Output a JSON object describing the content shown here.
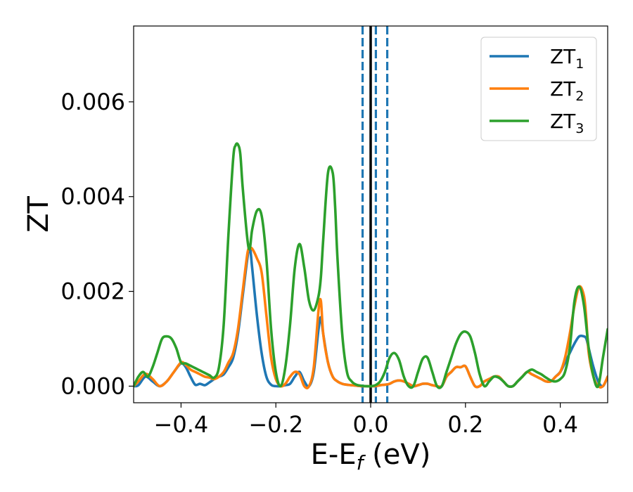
{
  "chart_data": {
    "type": "line",
    "title": "",
    "xlabel": {
      "main": "E-E",
      "sub": "f",
      "unit": " (eV)"
    },
    "ylabel": "ZT",
    "xlim": [
      -0.5,
      0.5
    ],
    "ylim": [
      -0.00035,
      0.0076
    ],
    "xticks": [
      -0.4,
      -0.2,
      0.0,
      0.2,
      0.4
    ],
    "xtick_labels": [
      "−0.4",
      "−0.2",
      "0.0",
      "0.2",
      "0.4"
    ],
    "yticks": [
      0.0,
      0.002,
      0.004,
      0.006
    ],
    "ytick_labels": [
      "0.000",
      "0.002",
      "0.004",
      "0.006"
    ],
    "grid": false,
    "legend_position": "top-right",
    "vlines": [
      {
        "x": 0.0,
        "style": "solid",
        "color": "#000000"
      },
      {
        "x": -0.017,
        "style": "dashed",
        "color": "#1f77b4"
      },
      {
        "x": 0.011,
        "style": "dashed",
        "color": "#1f77b4"
      },
      {
        "x": 0.035,
        "style": "dashed",
        "color": "#1f77b4"
      }
    ],
    "series": [
      {
        "name": "ZT",
        "sub": "1",
        "color": "#1f77b4",
        "x": [
          -0.5,
          -0.49,
          -0.475,
          -0.46,
          -0.445,
          -0.43,
          -0.415,
          -0.4,
          -0.39,
          -0.38,
          -0.37,
          -0.36,
          -0.35,
          -0.34,
          -0.33,
          -0.32,
          -0.31,
          -0.3,
          -0.29,
          -0.28,
          -0.27,
          -0.26,
          -0.255,
          -0.25,
          -0.24,
          -0.23,
          -0.22,
          -0.21,
          -0.2,
          -0.19,
          -0.18,
          -0.17,
          -0.16,
          -0.15,
          -0.14,
          -0.13,
          -0.12,
          -0.11,
          -0.105,
          -0.1,
          -0.09,
          -0.08,
          -0.07,
          -0.06,
          -0.05,
          -0.04,
          -0.03,
          -0.02,
          -0.01,
          0.0,
          0.01,
          0.02,
          0.03,
          0.04,
          0.05,
          0.06,
          0.07,
          0.08,
          0.09,
          0.1,
          0.11,
          0.12,
          0.13,
          0.14,
          0.15,
          0.16,
          0.17,
          0.18,
          0.19,
          0.2,
          0.21,
          0.22,
          0.23,
          0.24,
          0.25,
          0.26,
          0.27,
          0.28,
          0.29,
          0.3,
          0.31,
          0.32,
          0.33,
          0.34,
          0.35,
          0.36,
          0.37,
          0.38,
          0.39,
          0.4,
          0.41,
          0.42,
          0.43,
          0.44,
          0.45,
          0.455,
          0.46,
          0.47,
          0.48,
          0.49,
          0.5
        ],
        "y": [
          0.0,
          2e-05,
          0.0002,
          0.0001,
          0.0,
          0.0001,
          0.0003,
          0.00048,
          0.0004,
          0.0002,
          3e-05,
          5e-05,
          2e-05,
          8e-05,
          0.00015,
          0.0002,
          0.00025,
          0.0004,
          0.0006,
          0.0011,
          0.0019,
          0.0027,
          0.00295,
          0.0025,
          0.0015,
          0.0007,
          0.0002,
          3e-05,
          0.0,
          0.0,
          2e-05,
          5e-05,
          0.0002,
          0.0003,
          0.0001,
          0.0,
          0.0003,
          0.0012,
          0.00145,
          0.0011,
          0.0005,
          0.0002,
          0.0001,
          5e-05,
          3e-05,
          2e-05,
          1e-05,
          0.0,
          0.0,
          0.0,
          0.0,
          2e-05,
          3e-05,
          5e-05,
          0.0001,
          0.00012,
          0.0001,
          5e-05,
          0.0,
          2e-05,
          5e-05,
          5e-05,
          2e-05,
          0.0,
          0.0,
          0.0002,
          0.0003,
          0.0004,
          0.0004,
          0.00042,
          0.0002,
          0.0,
          0.0,
          0.0001,
          0.00015,
          0.0002,
          0.0002,
          0.0001,
          0.0,
          0.0,
          0.0001,
          0.0002,
          0.0003,
          0.00025,
          0.0002,
          0.00015,
          0.0001,
          0.0001,
          0.0002,
          0.0003,
          0.0005,
          0.0007,
          0.0009,
          0.00105,
          0.00105,
          0.001,
          0.0008,
          0.0004,
          0.0001,
          0.0,
          0.0002
        ]
      },
      {
        "name": "ZT",
        "sub": "2",
        "color": "#ff7f0e",
        "x": [
          -0.5,
          -0.49,
          -0.475,
          -0.46,
          -0.445,
          -0.43,
          -0.415,
          -0.4,
          -0.39,
          -0.38,
          -0.37,
          -0.36,
          -0.35,
          -0.34,
          -0.33,
          -0.32,
          -0.31,
          -0.3,
          -0.29,
          -0.28,
          -0.27,
          -0.26,
          -0.255,
          -0.25,
          -0.24,
          -0.23,
          -0.22,
          -0.21,
          -0.2,
          -0.19,
          -0.18,
          -0.17,
          -0.16,
          -0.15,
          -0.14,
          -0.13,
          -0.12,
          -0.11,
          -0.105,
          -0.1,
          -0.09,
          -0.08,
          -0.07,
          -0.06,
          -0.05,
          -0.04,
          -0.03,
          -0.02,
          -0.01,
          0.0,
          0.01,
          0.02,
          0.03,
          0.04,
          0.05,
          0.06,
          0.07,
          0.08,
          0.09,
          0.1,
          0.11,
          0.12,
          0.13,
          0.14,
          0.15,
          0.16,
          0.17,
          0.18,
          0.19,
          0.2,
          0.21,
          0.22,
          0.23,
          0.24,
          0.25,
          0.26,
          0.27,
          0.28,
          0.29,
          0.3,
          0.31,
          0.32,
          0.33,
          0.34,
          0.35,
          0.36,
          0.37,
          0.38,
          0.39,
          0.4,
          0.41,
          0.42,
          0.43,
          0.44,
          0.45,
          0.455,
          0.46,
          0.47,
          0.48,
          0.49,
          0.5
        ],
        "y": [
          0.0,
          0.0001,
          0.00026,
          0.00015,
          0.0,
          0.0001,
          0.0003,
          0.0005,
          0.00045,
          0.00035,
          0.0003,
          0.00025,
          0.0002,
          0.00018,
          0.00015,
          0.0002,
          0.0003,
          0.0005,
          0.0007,
          0.0012,
          0.002,
          0.0028,
          0.0029,
          0.0029,
          0.0027,
          0.0024,
          0.0015,
          0.0006,
          0.00015,
          0.0,
          5e-05,
          0.0002,
          0.0003,
          0.00025,
          0.0,
          0.0,
          0.0004,
          0.0016,
          0.0018,
          0.0011,
          0.0005,
          0.0002,
          0.0001,
          5e-05,
          3e-05,
          2e-05,
          1e-05,
          0.0,
          0.0,
          0.0,
          0.0,
          2e-05,
          3e-05,
          5e-05,
          0.0001,
          0.00012,
          0.0001,
          5e-05,
          0.0,
          2e-05,
          5e-05,
          5e-05,
          2e-05,
          0.0,
          0.0,
          0.0002,
          0.0003,
          0.0004,
          0.0004,
          0.00042,
          0.0002,
          0.0,
          0.0,
          0.0001,
          0.00015,
          0.0002,
          0.0002,
          0.0001,
          0.0,
          0.0,
          0.0001,
          0.0002,
          0.0003,
          0.00025,
          0.0002,
          0.00015,
          0.0001,
          0.0001,
          0.0002,
          0.0003,
          0.0006,
          0.0011,
          0.0017,
          0.0021,
          0.0019,
          0.0014,
          0.0007,
          0.0002,
          0.0,
          0.0,
          0.0002
        ]
      },
      {
        "name": "ZT",
        "sub": "3",
        "color": "#2ca02c",
        "x": [
          -0.5,
          -0.49,
          -0.48,
          -0.47,
          -0.46,
          -0.45,
          -0.44,
          -0.43,
          -0.42,
          -0.41,
          -0.4,
          -0.39,
          -0.38,
          -0.37,
          -0.36,
          -0.35,
          -0.34,
          -0.33,
          -0.32,
          -0.31,
          -0.3,
          -0.29,
          -0.285,
          -0.28,
          -0.275,
          -0.27,
          -0.26,
          -0.255,
          -0.25,
          -0.24,
          -0.23,
          -0.22,
          -0.21,
          -0.2,
          -0.19,
          -0.18,
          -0.17,
          -0.16,
          -0.15,
          -0.14,
          -0.13,
          -0.12,
          -0.11,
          -0.105,
          -0.1,
          -0.09,
          -0.08,
          -0.075,
          -0.07,
          -0.06,
          -0.05,
          -0.04,
          -0.03,
          -0.02,
          -0.01,
          0.0,
          0.01,
          0.02,
          0.03,
          0.04,
          0.05,
          0.06,
          0.07,
          0.08,
          0.09,
          0.1,
          0.11,
          0.12,
          0.13,
          0.14,
          0.15,
          0.16,
          0.17,
          0.18,
          0.19,
          0.2,
          0.21,
          0.22,
          0.23,
          0.24,
          0.25,
          0.26,
          0.27,
          0.28,
          0.29,
          0.3,
          0.31,
          0.32,
          0.33,
          0.34,
          0.35,
          0.36,
          0.37,
          0.38,
          0.39,
          0.4,
          0.41,
          0.42,
          0.43,
          0.44,
          0.45,
          0.46,
          0.47,
          0.48,
          0.49,
          0.5
        ],
        "y": [
          0.0,
          0.0002,
          0.0003,
          0.0002,
          0.0004,
          0.0007,
          0.001,
          0.00105,
          0.001,
          0.0008,
          0.0005,
          0.00048,
          0.00043,
          0.00038,
          0.00033,
          0.00028,
          0.00023,
          0.00018,
          0.0004,
          0.0013,
          0.0032,
          0.0048,
          0.00508,
          0.0051,
          0.0049,
          0.0042,
          0.0031,
          0.0029,
          0.0033,
          0.0037,
          0.0036,
          0.0027,
          0.0012,
          0.0003,
          0.0,
          0.0004,
          0.0013,
          0.0025,
          0.003,
          0.0025,
          0.0018,
          0.0016,
          0.0019,
          0.0023,
          0.0031,
          0.0045,
          0.0045,
          0.0038,
          0.0027,
          0.0011,
          0.0003,
          0.0001,
          3e-05,
          1e-05,
          0.0,
          0.0,
          2e-05,
          0.0001,
          0.0003,
          0.0006,
          0.0007,
          0.00055,
          0.0002,
          0.0,
          0.0,
          0.0003,
          0.00058,
          0.0006,
          0.0003,
          0.0,
          0.0,
          0.0003,
          0.0006,
          0.0009,
          0.0011,
          0.00115,
          0.00105,
          0.0007,
          0.00025,
          0.0,
          0.0001,
          0.0002,
          0.00018,
          0.0001,
          0.0,
          0.0,
          0.0001,
          0.0002,
          0.0003,
          0.00035,
          0.0003,
          0.00025,
          0.00018,
          0.00012,
          0.0001,
          0.00015,
          0.0003,
          0.0008,
          0.0018,
          0.0021,
          0.0017,
          0.0008,
          0.0002,
          0.0,
          0.0006,
          0.0012
        ]
      }
    ]
  }
}
